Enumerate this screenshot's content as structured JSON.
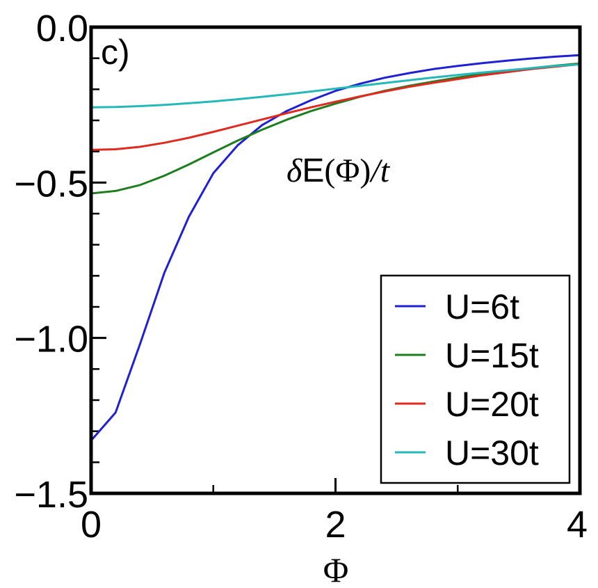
{
  "chart_data": {
    "type": "line",
    "panel_label": "c)",
    "annotation": {
      "delta": "δ",
      "energy": "E",
      "open": "(",
      "phi": "Φ",
      "close": ")",
      "slash": "/",
      "t": "t"
    },
    "xlabel": "Φ",
    "ylabel": "",
    "xlim": [
      0,
      4
    ],
    "ylim": [
      -1.5,
      0.0
    ],
    "x_ticks": [
      0,
      2,
      4
    ],
    "x_tick_labels": [
      "0",
      "2",
      "4"
    ],
    "x_minor_ticks": [
      1,
      3
    ],
    "y_ticks": [
      0.0,
      -0.5,
      -1.0,
      -1.5
    ],
    "y_tick_labels": [
      "0.0",
      "−0.5",
      "−1.0",
      "−1.5"
    ],
    "y_minor_step": 0.1,
    "grid": false,
    "legend_position": "bottom-right",
    "series": [
      {
        "name": "U=6t",
        "color": "#1f1fd6",
        "x": [
          0,
          0.2,
          0.4,
          0.6,
          0.8,
          1.0,
          1.2,
          1.4,
          1.6,
          1.8,
          2.0,
          2.2,
          2.4,
          2.6,
          2.8,
          3.0,
          3.2,
          3.4,
          3.6,
          3.8,
          4.0
        ],
        "y": [
          -1.33,
          -1.24,
          -1.02,
          -0.79,
          -0.61,
          -0.47,
          -0.38,
          -0.315,
          -0.27,
          -0.235,
          -0.205,
          -0.182,
          -0.163,
          -0.148,
          -0.135,
          -0.125,
          -0.116,
          -0.108,
          -0.101,
          -0.095,
          -0.09
        ]
      },
      {
        "name": "U=15t",
        "color": "#1e7d1e",
        "x": [
          0,
          0.2,
          0.4,
          0.6,
          0.8,
          1.0,
          1.2,
          1.4,
          1.6,
          1.8,
          2.0,
          2.2,
          2.4,
          2.6,
          2.8,
          3.0,
          3.2,
          3.4,
          3.6,
          3.8,
          4.0
        ],
        "y": [
          -0.535,
          -0.527,
          -0.508,
          -0.478,
          -0.442,
          -0.403,
          -0.365,
          -0.33,
          -0.298,
          -0.27,
          -0.246,
          -0.224,
          -0.205,
          -0.189,
          -0.175,
          -0.162,
          -0.151,
          -0.141,
          -0.132,
          -0.124,
          -0.117
        ]
      },
      {
        "name": "U=20t",
        "color": "#e02a1f",
        "x": [
          0,
          0.2,
          0.4,
          0.6,
          0.8,
          1.0,
          1.2,
          1.4,
          1.6,
          1.8,
          2.0,
          2.2,
          2.4,
          2.6,
          2.8,
          3.0,
          3.2,
          3.4,
          3.6,
          3.8,
          4.0
        ],
        "y": [
          -0.395,
          -0.393,
          -0.385,
          -0.372,
          -0.356,
          -0.337,
          -0.317,
          -0.297,
          -0.277,
          -0.258,
          -0.24,
          -0.223,
          -0.207,
          -0.192,
          -0.179,
          -0.167,
          -0.155,
          -0.145,
          -0.135,
          -0.127,
          -0.119
        ]
      },
      {
        "name": "U=30t",
        "color": "#25b8b8",
        "x": [
          0,
          0.2,
          0.4,
          0.6,
          0.8,
          1.0,
          1.2,
          1.4,
          1.6,
          1.8,
          2.0,
          2.2,
          2.4,
          2.6,
          2.8,
          3.0,
          3.2,
          3.4,
          3.6,
          3.8,
          4.0
        ],
        "y": [
          -0.258,
          -0.257,
          -0.254,
          -0.25,
          -0.245,
          -0.239,
          -0.232,
          -0.224,
          -0.216,
          -0.207,
          -0.198,
          -0.189,
          -0.18,
          -0.171,
          -0.162,
          -0.154,
          -0.146,
          -0.139,
          -0.132,
          -0.125,
          -0.12
        ]
      }
    ]
  }
}
